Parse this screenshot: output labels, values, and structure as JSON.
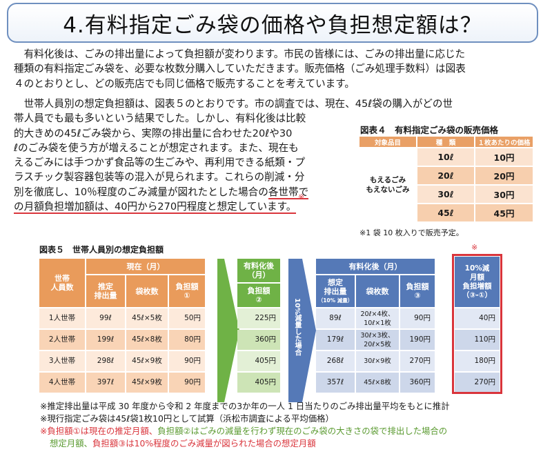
{
  "title": "4.有料指定ごみ袋の価格や負担想定額は？",
  "para1": [
    "　有料化後は、ごみの排出量によって負担額が変わります。市民の皆様には、ごみの排出量に応じた",
    "種類の有料指定ごみ袋を、必要な枚数分購入していただきます。販売価格（ごみ処理手数料）は図表",
    "４のとおりとし、どの販売店でも同じ価格で販売することを考えています。"
  ],
  "para2": [
    "　世帯人員別の想定負担額は、図表５のとおりです。市の調査では、現在、45ℓ袋の購入がどの世",
    "帯人員でも最も多いという結果でした。しかし、有料化後は比較",
    "的大きめの45ℓごみ袋から、実際の排出量に合わせた20ℓや30",
    "ℓのごみ袋を使う方が増えることが想定されます。また、現在も",
    "えるごみには手つかず食品等の生ごみや、再利用できる紙類・プ",
    "ラスチック製容器包装等の混入が見られます。これらの削減・分"
  ],
  "para2_line7_a": "別を徹底し、10％程度のごみ減量が図れたとした場合の",
  "para2_line7_b": "各世帯で",
  "para2_line8": "の月額負担増加額は、40円から270円程度と想定しています。",
  "mark": "※",
  "table4": {
    "title": "図表４　有料指定ごみ袋の販売価格",
    "headers": [
      "対象品目",
      "種　類",
      "１枚あたりの価格"
    ],
    "item": "もえるごみ\nもえないごみ",
    "rows": [
      {
        "type": "10ℓ",
        "price": "10円"
      },
      {
        "type": "20ℓ",
        "price": "20円"
      },
      {
        "type": "30ℓ",
        "price": "30円"
      },
      {
        "type": "45ℓ",
        "price": "45円"
      }
    ],
    "note": "※1 袋 10 枚入りで販売予定。"
  },
  "table5": {
    "title": "図表５　世帯人員別の想定負担額",
    "col_household": "世帯\n人員数",
    "current_header": "現在（月）",
    "current_cols": [
      "推定\n排出量",
      "袋枚数",
      "負担額\n①"
    ],
    "after_header": "有料化後\n（月）",
    "after_col": "負担額\n②",
    "arrow_text": "10%減量した場合",
    "after10_header": "有料化後（月）",
    "after10_cols": [
      "想定\n排出量",
      "袋枚数",
      "負担額\n③"
    ],
    "after10_subnote": "（10% 減量）",
    "increase_header": "10%減\n月額\n負担増額\n（③-①）",
    "rows": [
      {
        "hh": "1人世帯",
        "est": "99ℓ",
        "bags": "45ℓ×5枚",
        "b1": "50円",
        "b2": "225円",
        "est10": "89ℓ",
        "bags10": "20ℓ×4枚、\n10ℓ×1枚",
        "b3": "90円",
        "inc": "40円"
      },
      {
        "hh": "2人世帯",
        "est": "199ℓ",
        "bags": "45ℓ×8枚",
        "b1": "80円",
        "b2": "360円",
        "est10": "179ℓ",
        "bags10": "30ℓ×3枚、\n20ℓ×5枚",
        "b3": "190円",
        "inc": "110円"
      },
      {
        "hh": "3人世帯",
        "est": "298ℓ",
        "bags": "45ℓ×9枚",
        "b1": "90円",
        "b2": "405円",
        "est10": "268ℓ",
        "bags10": "30ℓ×9枚",
        "b3": "270円",
        "inc": "180円"
      },
      {
        "hh": "4人世帯",
        "est": "397ℓ",
        "bags": "45ℓ×9枚",
        "b1": "90円",
        "b2": "405円",
        "est10": "357ℓ",
        "bags10": "45ℓ×8枚",
        "b3": "360円",
        "inc": "270円"
      }
    ]
  },
  "footnotes": {
    "f1": "※推定排出量は平成 30 年度から令和 2 年度までの3か年の一人 1 日当たりのごみ排出量平均をもとに推計",
    "f2": "※現行指定ごみ袋は45ℓ袋1枚10円として試算（浜松市調査による平均価格）",
    "f3_mark": "※",
    "f3_a": "負担額①は現在の推定月額、",
    "f3_b": "負担額②はごみの減量を行わず現在のごみ袋の大きさの袋で排出した場合の",
    "f4_a": "想定月額、",
    "f4_b": "負担額③は10%程度のごみ減量が図られた場合の想定月額"
  },
  "colors": {
    "orange": "#e99b5b",
    "green": "#6fb246",
    "blue": "#5579b7",
    "red": "#d9343b"
  }
}
